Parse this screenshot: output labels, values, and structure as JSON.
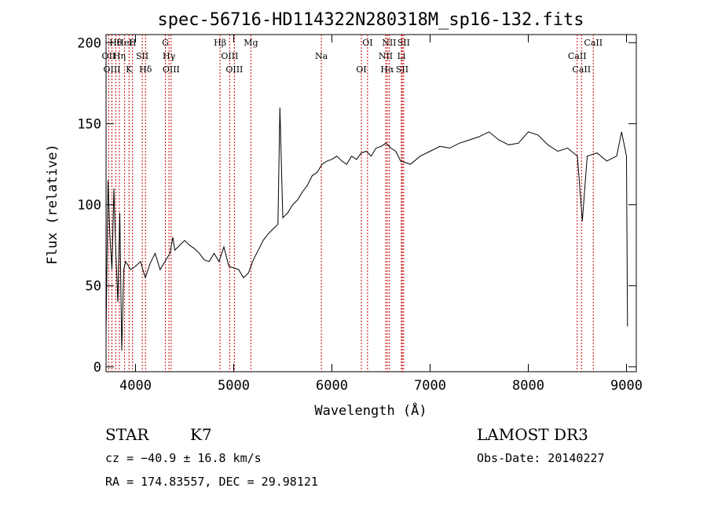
{
  "chart_data": {
    "type": "line",
    "title": "spec-56716-HD114322N280318M_sp16-132.fits",
    "xlabel": "Wavelength (Å)",
    "ylabel": "Flux (relative)",
    "xlim": [
      3700,
      9100
    ],
    "ylim": [
      -3,
      205
    ],
    "xticks": [
      4000,
      5000,
      6000,
      7000,
      8000,
      9000
    ],
    "xtick_labels": [
      "4000",
      "5000",
      "6000",
      "7000",
      "8000",
      "9000"
    ],
    "yticks": [
      0,
      50,
      100,
      150,
      200
    ],
    "ytick_labels": [
      "0",
      "50",
      "100",
      "150",
      "200"
    ],
    "grid": false,
    "series": [
      {
        "x": [
          3700,
          3720,
          3740,
          3760,
          3780,
          3800,
          3820,
          3840,
          3860,
          3880,
          3900,
          3950,
          4000,
          4050,
          4100,
          4150,
          4200,
          4250,
          4300,
          4350,
          4380,
          4400,
          4450,
          4500,
          4550,
          4600,
          4650,
          4700,
          4750,
          4800,
          4850,
          4900,
          4950,
          5000,
          5050,
          5100,
          5150,
          5200,
          5250,
          5300,
          5350,
          5400,
          5450,
          5470,
          5500,
          5550,
          5600,
          5650,
          5700,
          5750,
          5800,
          5850,
          5900,
          5950,
          6000,
          6050,
          6100,
          6150,
          6200,
          6250,
          6300,
          6350,
          6400,
          6450,
          6500,
          6550,
          6600,
          6650,
          6700,
          6750,
          6800,
          6900,
          7000,
          7100,
          7200,
          7300,
          7400,
          7500,
          7600,
          7700,
          7800,
          7900,
          8000,
          8100,
          8200,
          8300,
          8400,
          8500,
          8550,
          8600,
          8700,
          8800,
          8900,
          8950,
          9000,
          9010
        ],
        "y": [
          20,
          115,
          80,
          60,
          110,
          70,
          40,
          95,
          10,
          60,
          65,
          60,
          62,
          65,
          55,
          64,
          70,
          60,
          65,
          70,
          80,
          72,
          75,
          78,
          75,
          73,
          70,
          66,
          65,
          70,
          65,
          74,
          62,
          61,
          60,
          55,
          58,
          66,
          72,
          78,
          82,
          85,
          88,
          160,
          92,
          95,
          100,
          103,
          108,
          112,
          118,
          120,
          125,
          127,
          128,
          130,
          127,
          125,
          130,
          128,
          132,
          133,
          130,
          135,
          136,
          138,
          135,
          133,
          127,
          126,
          125,
          130,
          133,
          136,
          135,
          138,
          140,
          142,
          145,
          140,
          137,
          138,
          145,
          143,
          137,
          133,
          135,
          130,
          90,
          130,
          132,
          127,
          130,
          145,
          130,
          25
        ]
      }
    ],
    "lines": [
      {
        "label": "Hθ",
        "wave": 3798
      },
      {
        "label": "OII",
        "wave": 3727
      },
      {
        "label": "OIII",
        "wave": 3760
      },
      {
        "label": "HeI",
        "wave": 3889
      },
      {
        "label": "Hη",
        "wave": 3835
      },
      {
        "label": "K",
        "wave": 3934
      },
      {
        "label": "H",
        "wave": 3969
      },
      {
        "label": "SII",
        "wave": 4069
      },
      {
        "label": "Hδ",
        "wave": 4102
      },
      {
        "label": "G",
        "wave": 4304
      },
      {
        "label": "Hγ",
        "wave": 4341
      },
      {
        "label": "OIII",
        "wave": 4363
      },
      {
        "label": "Hβ",
        "wave": 4861
      },
      {
        "label": "OIII",
        "wave": 4959
      },
      {
        "label": "OIII",
        "wave": 5007
      },
      {
        "label": "Mg",
        "wave": 5175
      },
      {
        "label": "Na",
        "wave": 5893
      },
      {
        "label": "OI",
        "wave": 6300
      },
      {
        "label": "OI",
        "wave": 6363
      },
      {
        "label": "NII",
        "wave": 6548
      },
      {
        "label": "Hα",
        "wave": 6563
      },
      {
        "label": "NII",
        "wave": 6583
      },
      {
        "label": "Li",
        "wave": 6708
      },
      {
        "label": "SII",
        "wave": 6716
      },
      {
        "label": "SII",
        "wave": 6731
      },
      {
        "label": "CaII",
        "wave": 8498
      },
      {
        "label": "CaII",
        "wave": 8542
      },
      {
        "label": "CaII",
        "wave": 8662
      }
    ],
    "colors": {
      "spectrum": "#000000",
      "lines": "#cc0000"
    }
  },
  "info": {
    "class": "STAR",
    "subclass": "K7",
    "survey": "LAMOST DR3",
    "cz": "cz = −40.9 ± 16.8 km/s",
    "obs_date": "Obs-Date: 20140227",
    "coords": "RA = 174.83557, DEC =  29.98121"
  }
}
